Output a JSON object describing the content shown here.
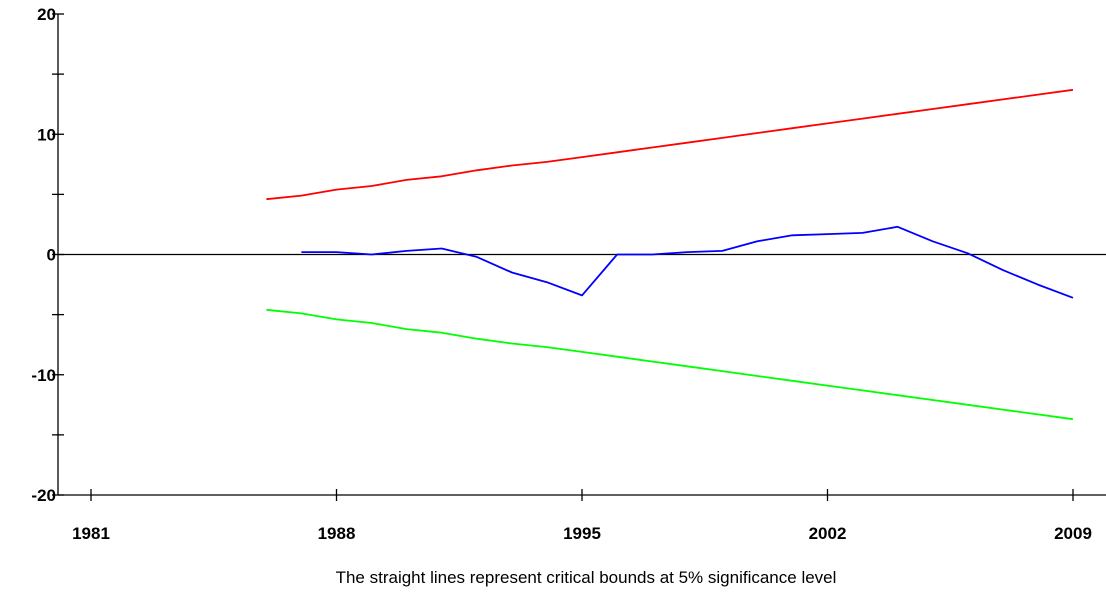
{
  "chart_data": {
    "type": "line",
    "title": "",
    "xlabel": "",
    "ylabel": "",
    "caption": "The straight lines represent critical bounds at 5% significance level",
    "xlim": [
      1981,
      2009
    ],
    "ylim": [
      -20,
      20
    ],
    "x_ticks": [
      1981,
      1988,
      1995,
      2002,
      2009
    ],
    "x_tick_labels": [
      "1981",
      "1988",
      "1995",
      "2002",
      "2009"
    ],
    "y_ticks": [
      -20,
      -10,
      0,
      10,
      20
    ],
    "y_tick_labels": [
      "-20",
      "-10",
      "0",
      "10",
      "20"
    ],
    "reference_line": 0,
    "grid": false,
    "legend": "none",
    "series": [
      {
        "color": "#ff0000",
        "x": [
          1986,
          1987,
          1988,
          1989,
          1990,
          1991,
          1992,
          1993,
          1994,
          1995,
          1996,
          1997,
          1998,
          1999,
          2000,
          2001,
          2002,
          2003,
          2004,
          2005,
          2006,
          2007,
          2008,
          2009
        ],
        "values": [
          4.6,
          4.9,
          5.4,
          5.7,
          6.2,
          6.5,
          7.0,
          7.4,
          7.7,
          8.1,
          8.5,
          8.9,
          9.3,
          9.7,
          10.1,
          10.5,
          10.9,
          11.3,
          11.7,
          12.1,
          12.5,
          12.9,
          13.3,
          13.7
        ]
      },
      {
        "color": "#0000ff",
        "x": [
          1987,
          1988,
          1989,
          1990,
          1991,
          1992,
          1993,
          1994,
          1995,
          1996,
          1997,
          1998,
          1999,
          2000,
          2001,
          2002,
          2003,
          2004,
          2005,
          2006,
          2007,
          2008,
          2009
        ],
        "values": [
          0.2,
          0.2,
          0.0,
          0.3,
          0.5,
          -0.2,
          -1.5,
          -2.3,
          -3.4,
          0.0,
          0.0,
          0.2,
          0.3,
          1.1,
          1.6,
          1.7,
          1.8,
          2.3,
          1.1,
          0.1,
          -1.3,
          -2.5,
          -3.6
        ]
      },
      {
        "color": "#00ff00",
        "x": [
          1986,
          1987,
          1988,
          1989,
          1990,
          1991,
          1992,
          1993,
          1994,
          1995,
          1996,
          1997,
          1998,
          1999,
          2000,
          2001,
          2002,
          2003,
          2004,
          2005,
          2006,
          2007,
          2008,
          2009
        ],
        "values": [
          -4.6,
          -4.9,
          -5.4,
          -5.7,
          -6.2,
          -6.5,
          -7.0,
          -7.4,
          -7.7,
          -8.1,
          -8.5,
          -8.9,
          -9.3,
          -9.7,
          -10.1,
          -10.5,
          -10.9,
          -11.3,
          -11.7,
          -12.1,
          -12.5,
          -12.9,
          -13.3,
          -13.7
        ]
      }
    ]
  }
}
